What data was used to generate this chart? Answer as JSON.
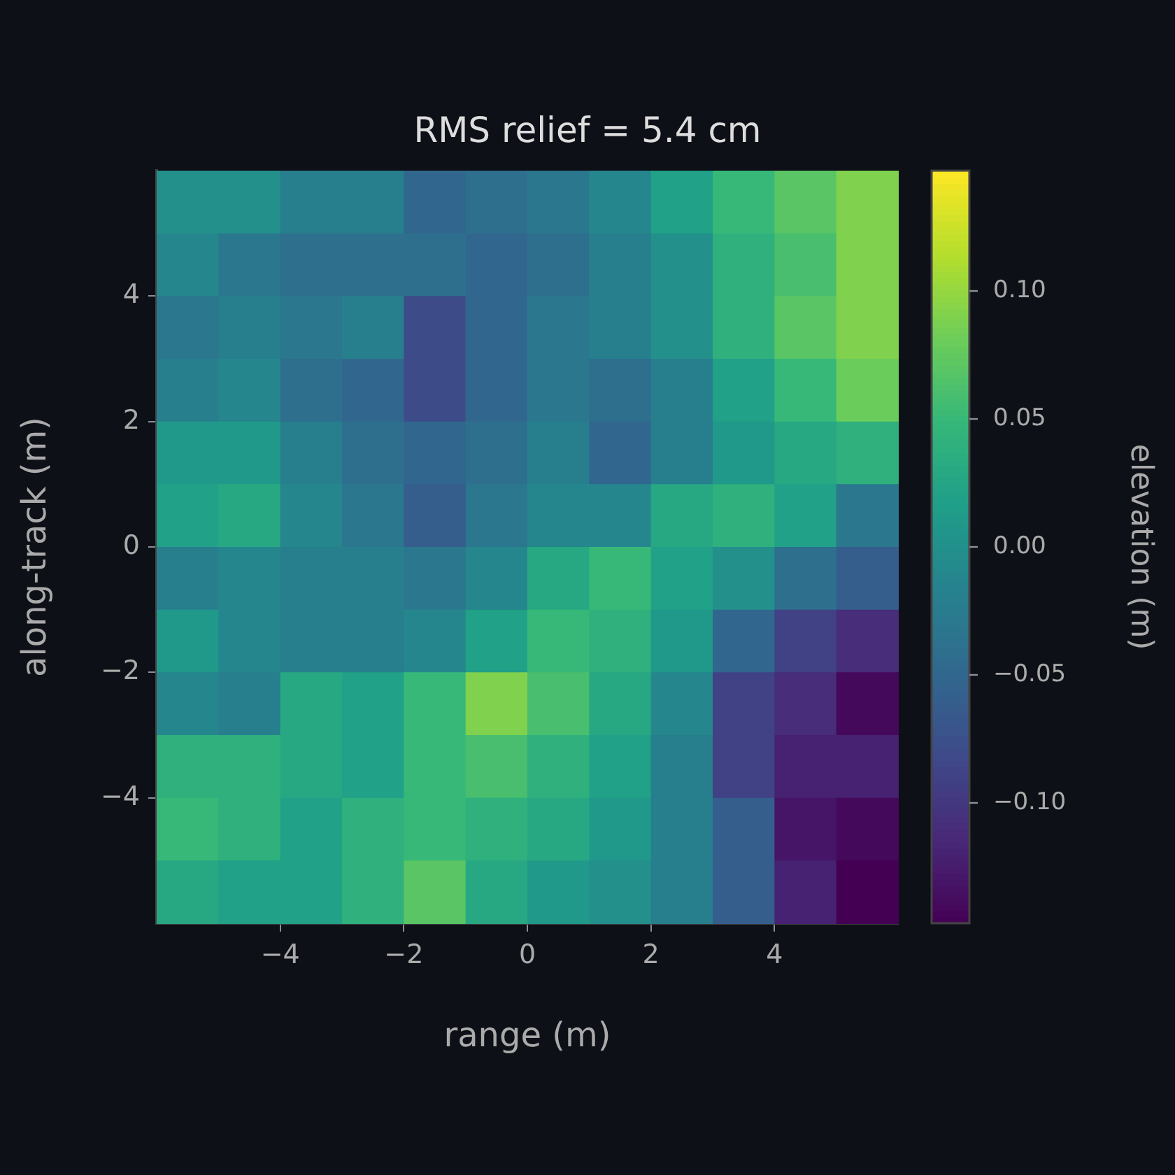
{
  "chart_data": {
    "type": "heatmap",
    "title": "RMS relief = 5.4 cm",
    "xlabel": "range (m)",
    "ylabel": "along-track (m)",
    "clabel": "elevation (m)",
    "x": [
      -5.5,
      -4.5,
      -3.5,
      -2.5,
      -1.5,
      -0.5,
      0.5,
      1.5,
      2.5,
      3.5,
      4.5,
      5.5
    ],
    "y": [
      5.5,
      4.5,
      3.5,
      2.5,
      1.5,
      0.5,
      -0.5,
      -1.5,
      -2.5,
      -3.5,
      -4.5,
      -5.5
    ],
    "cells": [
      [
        0.0,
        0.0,
        -0.02,
        -0.02,
        -0.05,
        -0.04,
        -0.03,
        -0.01,
        0.02,
        0.05,
        0.07,
        0.09
      ],
      [
        -0.01,
        -0.03,
        -0.04,
        -0.04,
        -0.04,
        -0.05,
        -0.04,
        -0.02,
        0.0,
        0.04,
        0.06,
        0.09
      ],
      [
        -0.03,
        -0.02,
        -0.03,
        -0.02,
        -0.08,
        -0.05,
        -0.03,
        -0.02,
        0.0,
        0.04,
        0.07,
        0.09
      ],
      [
        -0.02,
        -0.01,
        -0.04,
        -0.05,
        -0.08,
        -0.05,
        -0.03,
        -0.04,
        -0.02,
        0.02,
        0.05,
        0.08
      ],
      [
        0.01,
        0.01,
        -0.02,
        -0.04,
        -0.05,
        -0.04,
        -0.02,
        -0.05,
        -0.02,
        0.01,
        0.03,
        0.04
      ],
      [
        0.02,
        0.03,
        -0.01,
        -0.03,
        -0.06,
        -0.03,
        -0.01,
        -0.01,
        0.03,
        0.04,
        0.02,
        -0.03
      ],
      [
        -0.02,
        -0.01,
        -0.02,
        -0.02,
        -0.03,
        -0.01,
        0.03,
        0.05,
        0.02,
        0.0,
        -0.04,
        -0.06
      ],
      [
        0.01,
        -0.01,
        -0.02,
        -0.02,
        -0.01,
        0.02,
        0.05,
        0.04,
        0.01,
        -0.05,
        -0.09,
        -0.11
      ],
      [
        -0.01,
        -0.02,
        0.03,
        0.02,
        0.05,
        0.09,
        0.06,
        0.03,
        -0.01,
        -0.09,
        -0.11,
        -0.14
      ],
      [
        0.04,
        0.04,
        0.03,
        0.02,
        0.05,
        0.06,
        0.04,
        0.02,
        -0.02,
        -0.09,
        -0.12,
        -0.12
      ],
      [
        0.05,
        0.04,
        0.02,
        0.04,
        0.05,
        0.04,
        0.03,
        0.01,
        -0.02,
        -0.06,
        -0.13,
        -0.14
      ],
      [
        0.03,
        0.02,
        0.02,
        0.04,
        0.07,
        0.03,
        0.01,
        0.0,
        -0.02,
        -0.06,
        -0.12,
        -0.147
      ]
    ],
    "xlim": [
      -6,
      6
    ],
    "ylim": [
      -6,
      6
    ],
    "xticks": [
      {
        "value": -4,
        "label": "−4"
      },
      {
        "value": -2,
        "label": "−2"
      },
      0,
      2,
      4
    ],
    "yticks": [
      {
        "value": -4,
        "label": "−4"
      },
      {
        "value": -2,
        "label": "−2"
      },
      0,
      2,
      4
    ],
    "clim": [
      -0.147,
      0.147
    ],
    "cticks": [
      {
        "value": -0.1,
        "label": "−0.10"
      },
      {
        "value": -0.05,
        "label": "−0.05"
      },
      {
        "value": 0,
        "label": "0.00"
      },
      {
        "value": 0.05,
        "label": "0.05"
      },
      {
        "value": 0.1,
        "label": "0.10"
      }
    ]
  }
}
